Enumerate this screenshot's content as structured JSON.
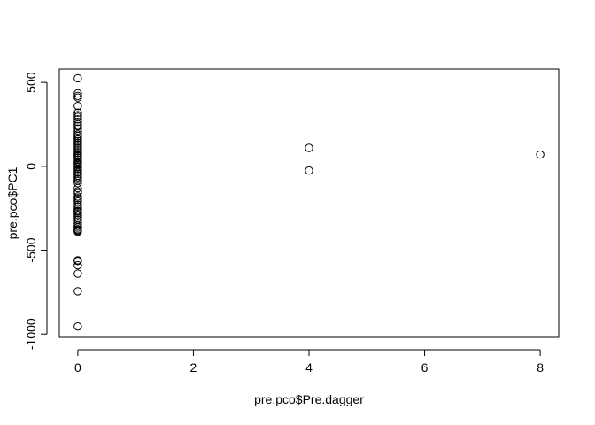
{
  "chart_data": {
    "type": "scatter",
    "title": "",
    "xlabel": "pre.pco$Pre.dagger",
    "ylabel": "pre.pco$PC1",
    "xlim": [
      -0.32,
      8.32
    ],
    "ylim": [
      -1020,
      580
    ],
    "x_ticks": [
      0,
      2,
      4,
      6,
      8
    ],
    "y_ticks": [
      -1000,
      -500,
      0,
      500
    ],
    "x_tick_labels": [
      "0",
      "2",
      "4",
      "6",
      "8"
    ],
    "y_tick_labels": [
      "-1000",
      "-500",
      "0",
      "500"
    ],
    "grid": false,
    "legend": "none",
    "marker": "open-circle",
    "series": [
      {
        "x": [
          0,
          0,
          0,
          0,
          0,
          0,
          0,
          0,
          0,
          0,
          0,
          0,
          0,
          0,
          0,
          0,
          0,
          0,
          0,
          0,
          0,
          0,
          0,
          0,
          0,
          0,
          0,
          0,
          0,
          0,
          0,
          0,
          0,
          0,
          0,
          0,
          0,
          0,
          0,
          0,
          0,
          0,
          0,
          0,
          0,
          0,
          0,
          0,
          0,
          0,
          0,
          0,
          0,
          0,
          0,
          0,
          0,
          0,
          0,
          0,
          0,
          0,
          0,
          0,
          0,
          0,
          0,
          0,
          0,
          0,
          0,
          0,
          0,
          0,
          0,
          0,
          4,
          4,
          8
        ],
        "y": [
          525,
          435,
          420,
          410,
          360,
          320,
          305,
          295,
          280,
          265,
          250,
          240,
          225,
          205,
          190,
          180,
          170,
          160,
          150,
          140,
          130,
          120,
          110,
          100,
          90,
          80,
          70,
          60,
          50,
          40,
          30,
          20,
          10,
          0,
          -5,
          -15,
          -25,
          -35,
          -45,
          -55,
          -65,
          -75,
          -85,
          -100,
          -150,
          -160,
          -180,
          -190,
          -210,
          -240,
          -255,
          -265,
          -270,
          -280,
          -290,
          -300,
          -320,
          -340,
          -355,
          -365,
          -375,
          -385,
          -390,
          -560,
          -565,
          -590,
          -640,
          -745,
          -955,
          -310,
          -230,
          15,
          -130,
          -200,
          65,
          -380,
          110,
          -25,
          70
        ]
      }
    ]
  }
}
